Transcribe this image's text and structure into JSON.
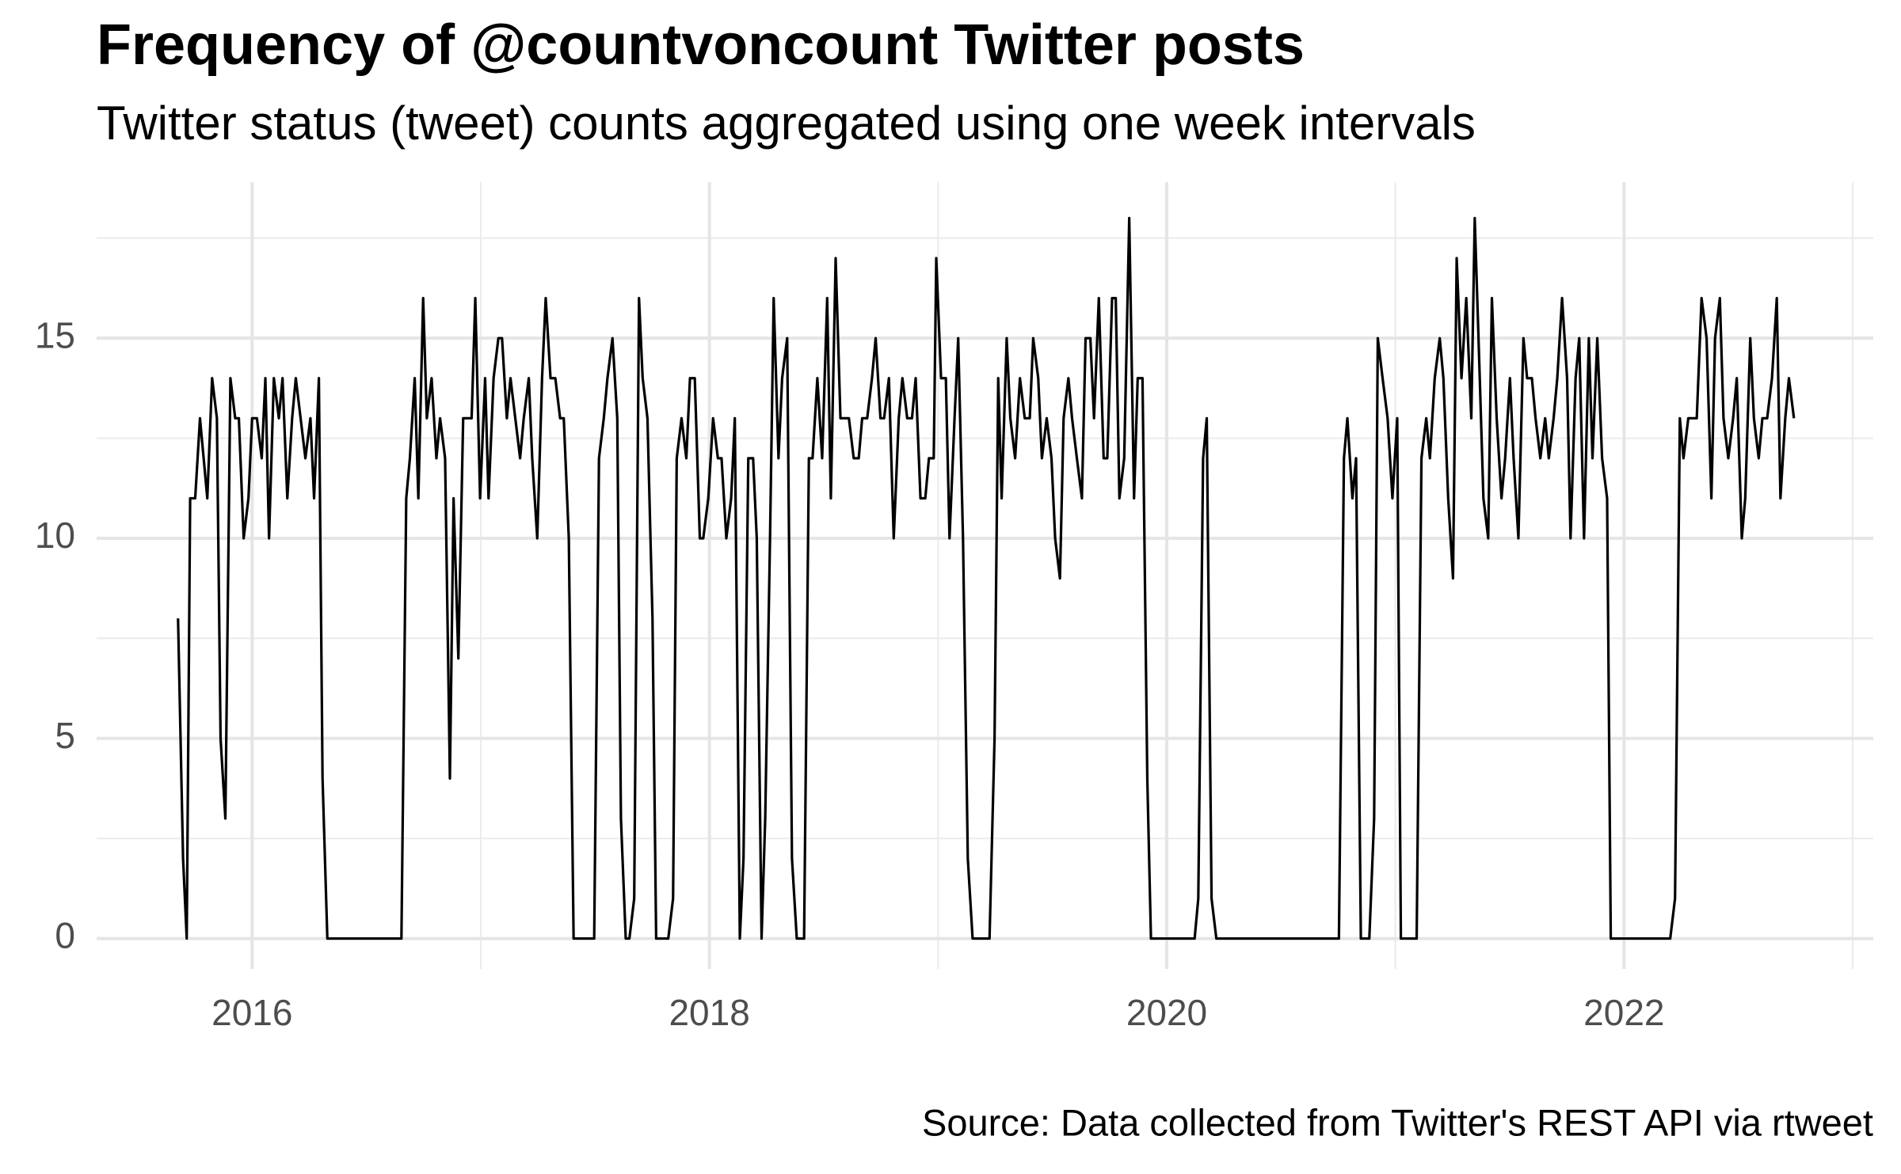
{
  "chart_data": {
    "type": "line",
    "title": "Frequency of @countvoncount Twitter posts",
    "subtitle": "Twitter status (tweet) counts aggregated using one week intervals",
    "caption": "Source: Data collected from Twitter's REST API via rtweet",
    "color": "#000000",
    "grid": true,
    "xlim": [
      2015.32,
      2023.09
    ],
    "xticks": [
      2016,
      2018,
      2020,
      2022
    ],
    "ylim": [
      -0.76,
      18.9
    ],
    "yticks": [
      0,
      5,
      10,
      15
    ],
    "x": [
      2015.676,
      2015.698,
      2015.714,
      2015.729,
      2015.751,
      2015.772,
      2015.804,
      2015.825,
      2015.846,
      2015.862,
      2015.883,
      2015.905,
      2015.926,
      2015.942,
      2015.963,
      2015.984,
      2016.0,
      2016.021,
      2016.042,
      2016.058,
      2016.074,
      2016.095,
      2016.117,
      2016.133,
      2016.154,
      2016.175,
      2016.191,
      2016.212,
      2016.233,
      2016.255,
      2016.271,
      2016.292,
      2016.308,
      2016.329,
      2016.653,
      2016.674,
      2016.69,
      2016.711,
      2016.727,
      2016.748,
      2016.764,
      2016.785,
      2016.806,
      2016.822,
      2016.844,
      2016.865,
      2016.881,
      2016.902,
      2016.923,
      2016.944,
      2016.96,
      2016.976,
      2016.997,
      2017.019,
      2017.034,
      2017.056,
      2017.077,
      2017.093,
      2017.114,
      2017.13,
      2017.151,
      2017.172,
      2017.188,
      2017.21,
      2017.225,
      2017.247,
      2017.268,
      2017.284,
      2017.305,
      2017.326,
      2017.347,
      2017.363,
      2017.385,
      2017.406,
      2017.496,
      2017.517,
      2017.538,
      2017.554,
      2017.576,
      2017.597,
      2017.613,
      2017.634,
      2017.65,
      2017.671,
      2017.692,
      2017.708,
      2017.729,
      2017.751,
      2017.767,
      2017.82,
      2017.841,
      2017.857,
      2017.878,
      2017.899,
      2017.915,
      2017.936,
      2017.958,
      2017.973,
      2017.995,
      2018.016,
      2018.037,
      2018.053,
      2018.074,
      2018.095,
      2018.111,
      2018.133,
      2018.149,
      2018.17,
      2018.191,
      2018.207,
      2018.228,
      2018.244,
      2018.265,
      2018.281,
      2018.302,
      2018.318,
      2018.34,
      2018.361,
      2018.382,
      2018.414,
      2018.435,
      2018.451,
      2018.472,
      2018.493,
      2018.515,
      2018.531,
      2018.552,
      2018.573,
      2018.594,
      2018.61,
      2018.631,
      2018.653,
      2018.668,
      2018.69,
      2018.711,
      2018.727,
      2018.748,
      2018.764,
      2018.785,
      2018.806,
      2018.828,
      2018.844,
      2018.865,
      2018.886,
      2018.902,
      2018.923,
      2018.944,
      2018.96,
      2018.981,
      2018.992,
      2019.013,
      2019.034,
      2019.05,
      2019.072,
      2019.088,
      2019.109,
      2019.13,
      2019.151,
      2019.225,
      2019.247,
      2019.263,
      2019.278,
      2019.3,
      2019.316,
      2019.337,
      2019.358,
      2019.379,
      2019.401,
      2019.416,
      2019.438,
      2019.454,
      2019.475,
      2019.496,
      2019.512,
      2019.533,
      2019.549,
      2019.57,
      2019.586,
      2019.607,
      2019.629,
      2019.645,
      2019.666,
      2019.682,
      2019.703,
      2019.724,
      2019.74,
      2019.761,
      2019.777,
      2019.793,
      2019.814,
      2019.836,
      2019.857,
      2019.873,
      2019.894,
      2019.915,
      2019.931,
      2020.122,
      2020.138,
      2020.159,
      2020.175,
      2020.196,
      2020.217,
      2020.753,
      2020.775,
      2020.79,
      2020.812,
      2020.828,
      2020.849,
      2020.886,
      2020.907,
      2020.923,
      2020.944,
      2020.966,
      2020.987,
      2021.008,
      2021.024,
      2021.093,
      2021.114,
      2021.135,
      2021.151,
      2021.172,
      2021.194,
      2021.21,
      2021.231,
      2021.252,
      2021.268,
      2021.289,
      2021.31,
      2021.332,
      2021.347,
      2021.369,
      2021.385,
      2021.406,
      2021.422,
      2021.443,
      2021.464,
      2021.48,
      2021.501,
      2021.517,
      2021.538,
      2021.56,
      2021.576,
      2021.597,
      2021.613,
      2021.634,
      2021.655,
      2021.671,
      2021.692,
      2021.708,
      2021.729,
      2021.751,
      2021.766,
      2021.788,
      2021.804,
      2021.825,
      2021.846,
      2021.862,
      2021.883,
      2021.904,
      2021.926,
      2021.942,
      2022.202,
      2022.223,
      2022.244,
      2022.26,
      2022.281,
      2022.302,
      2022.318,
      2022.339,
      2022.361,
      2022.382,
      2022.398,
      2022.419,
      2022.435,
      2022.456,
      2022.477,
      2022.493,
      2022.515,
      2022.53,
      2022.552,
      2022.568,
      2022.589,
      2022.605,
      2022.626,
      2022.647,
      2022.668,
      2022.684,
      2022.705,
      2022.721,
      2022.743
    ],
    "values": [
      8,
      2,
      0,
      11,
      11,
      13,
      11,
      14,
      13,
      5,
      3,
      14,
      13,
      13,
      10,
      11,
      13,
      13,
      12,
      14,
      10,
      14,
      13,
      14,
      11,
      13,
      14,
      13,
      12,
      13,
      11,
      14,
      4,
      0,
      0,
      11,
      12,
      14,
      11,
      16,
      13,
      14,
      12,
      13,
      12,
      4,
      11,
      7,
      13,
      13,
      13,
      16,
      11,
      14,
      11,
      14,
      15,
      15,
      13,
      14,
      13,
      12,
      13,
      14,
      12,
      10,
      14,
      16,
      14,
      14,
      13,
      13,
      10,
      0,
      0,
      12,
      13,
      14,
      15,
      13,
      3,
      0,
      0,
      1,
      16,
      14,
      13,
      8,
      0,
      0,
      1,
      12,
      13,
      12,
      14,
      14,
      10,
      10,
      11,
      13,
      12,
      12,
      10,
      11,
      13,
      0,
      2,
      12,
      12,
      10,
      0,
      3,
      10,
      16,
      12,
      14,
      15,
      2,
      0,
      0,
      12,
      12,
      14,
      12,
      16,
      11,
      17,
      13,
      13,
      13,
      12,
      12,
      13,
      13,
      14,
      15,
      13,
      13,
      14,
      10,
      13,
      14,
      13,
      13,
      14,
      11,
      11,
      12,
      12,
      17,
      14,
      14,
      10,
      13,
      15,
      10,
      2,
      0,
      0,
      5,
      14,
      11,
      15,
      13,
      12,
      14,
      13,
      13,
      15,
      14,
      12,
      13,
      12,
      10,
      9,
      13,
      14,
      13,
      12,
      11,
      15,
      15,
      13,
      16,
      12,
      12,
      16,
      16,
      11,
      12,
      18,
      11,
      14,
      14,
      4,
      0,
      0,
      1,
      12,
      13,
      1,
      0,
      0,
      12,
      13,
      11,
      12,
      0,
      0,
      3,
      15,
      14,
      13,
      11,
      13,
      0,
      0,
      12,
      13,
      12,
      14,
      15,
      14,
      11,
      9,
      17,
      14,
      16,
      13,
      18,
      14,
      11,
      10,
      16,
      13,
      11,
      12,
      14,
      12,
      10,
      15,
      14,
      14,
      13,
      12,
      13,
      12,
      13,
      14,
      16,
      14,
      10,
      14,
      15,
      10,
      15,
      12,
      15,
      12,
      11,
      0,
      0,
      1,
      13,
      12,
      13,
      13,
      13,
      16,
      15,
      11,
      15,
      16,
      13,
      12,
      13,
      14,
      10,
      11,
      15,
      13,
      12,
      13,
      13,
      14,
      16,
      11,
      13,
      14,
      13
    ]
  }
}
